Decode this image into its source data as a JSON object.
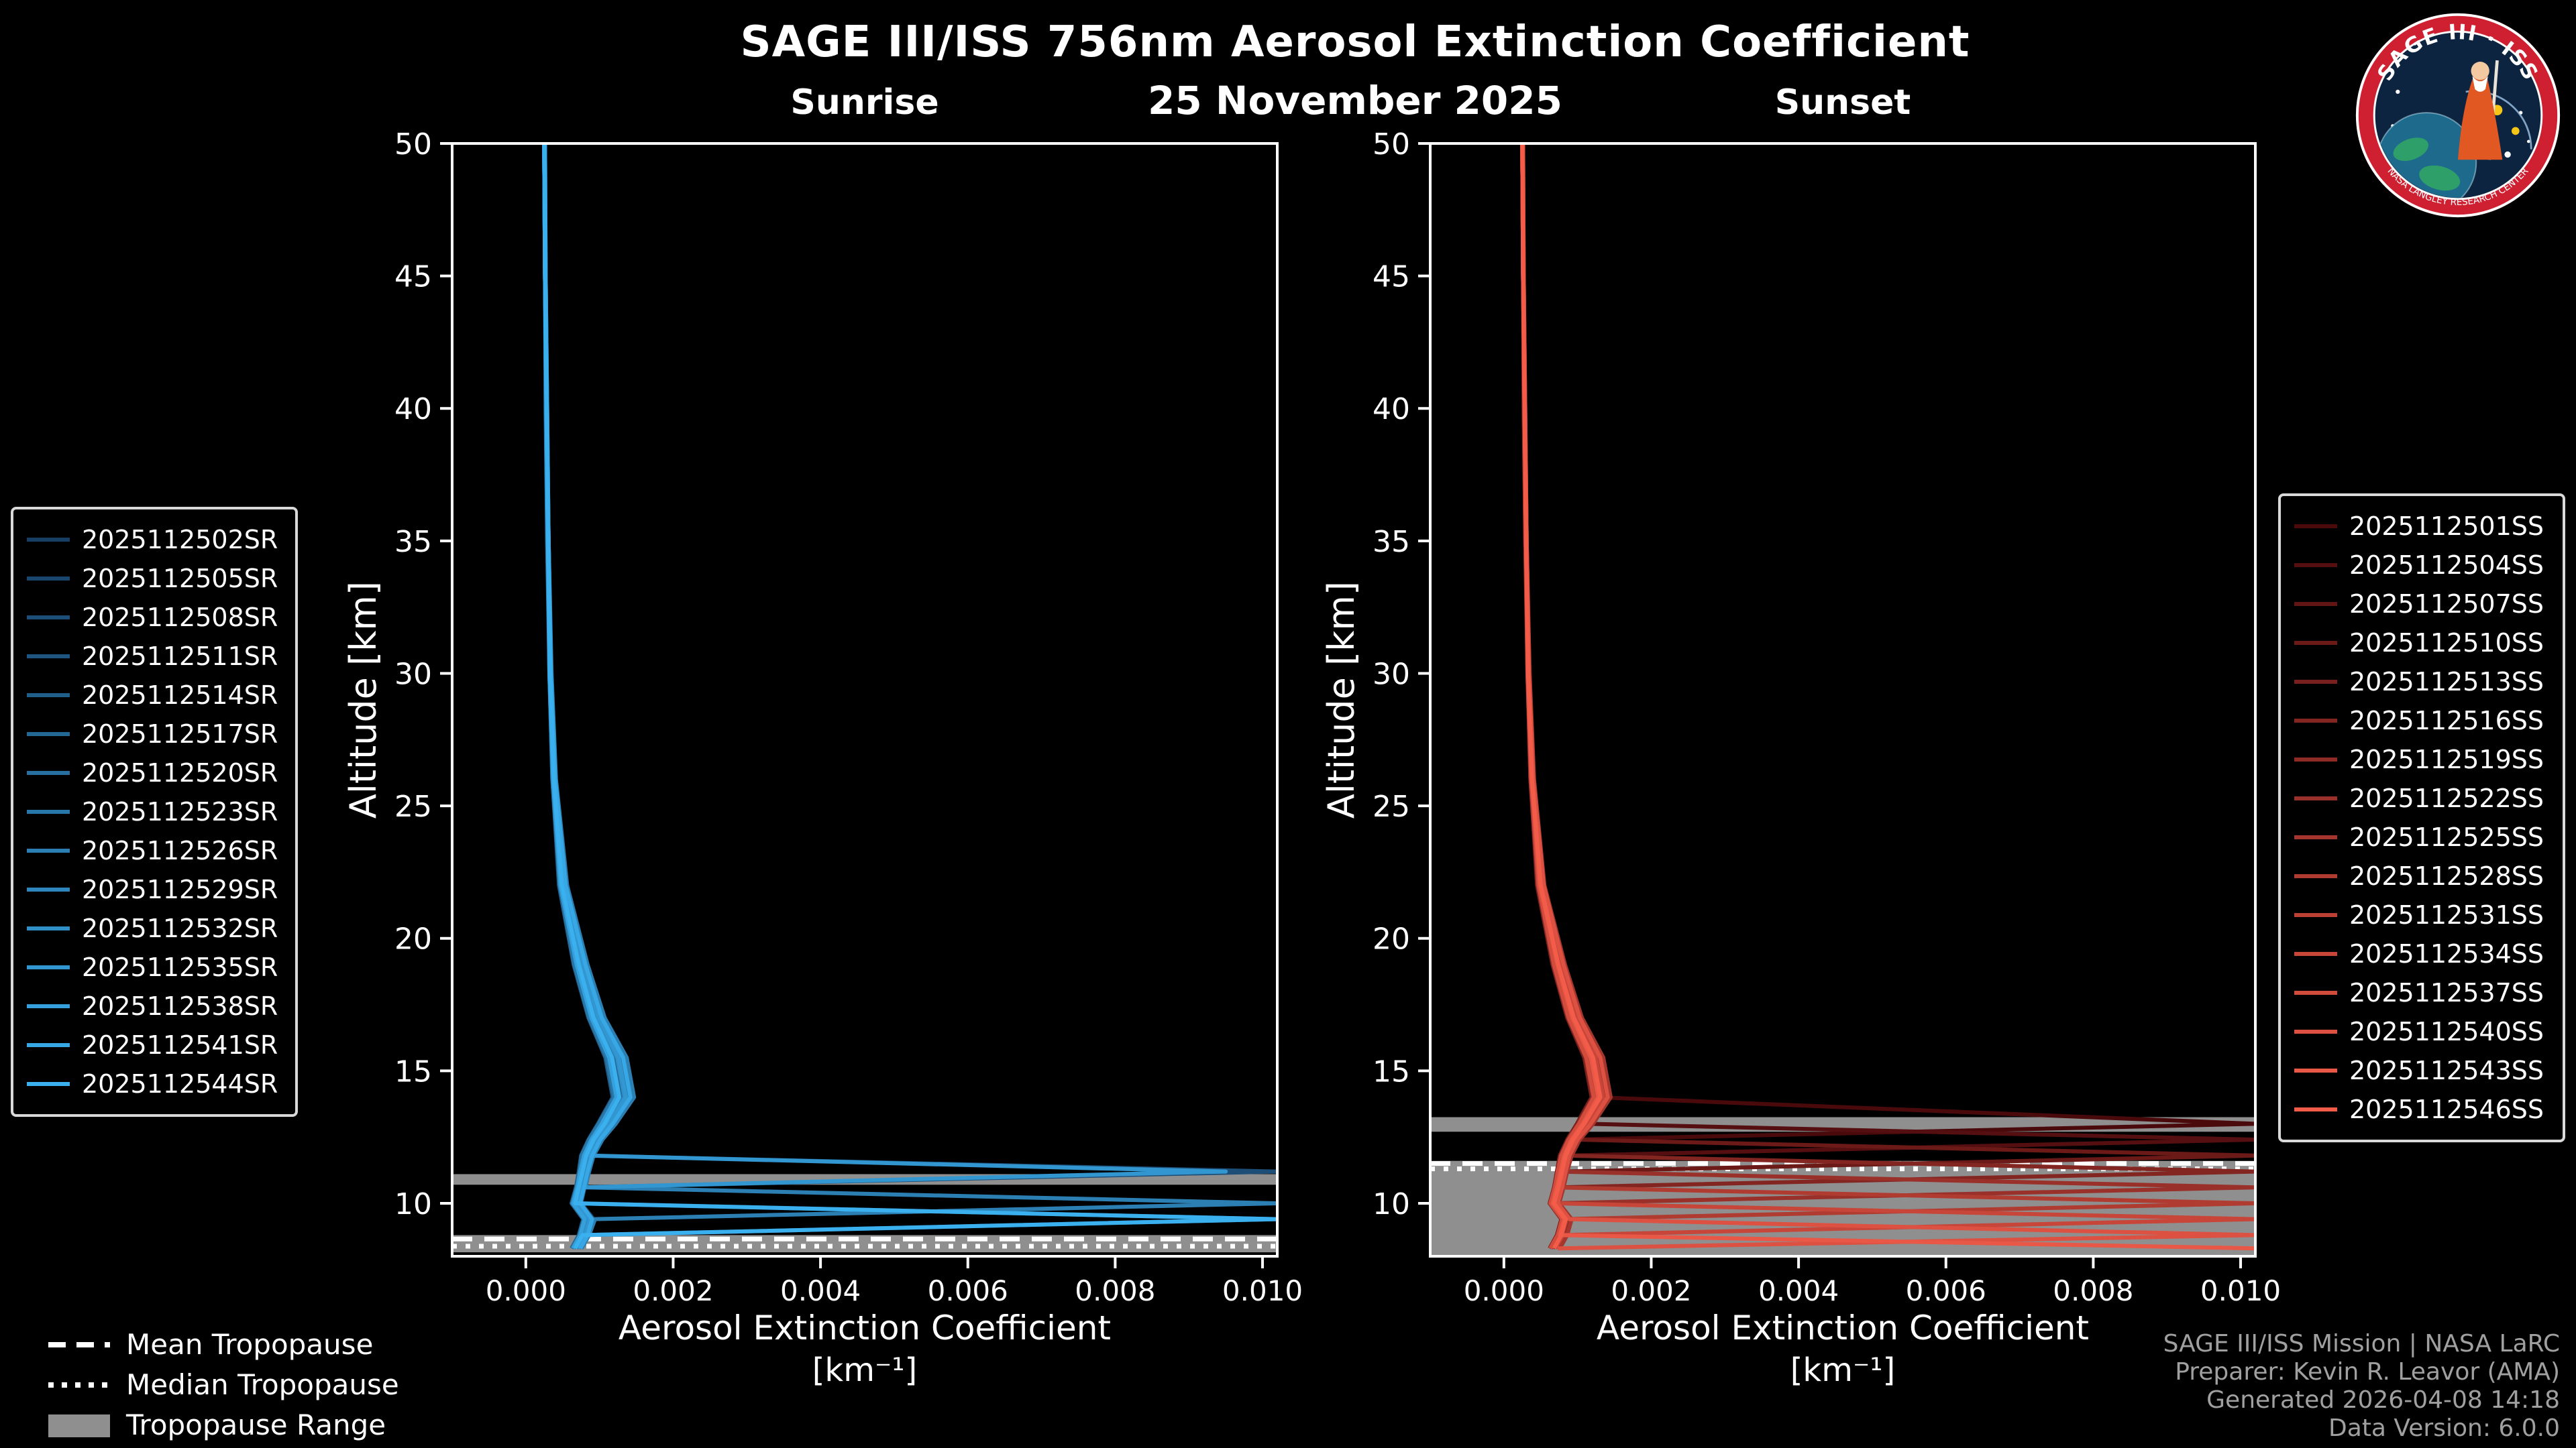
{
  "page": {
    "title": "SAGE III/ISS 756nm Aerosol Extinction Coefficient",
    "date": "25 November 2025"
  },
  "logo": {
    "text": "SAGE III · ISS",
    "subtext": "NASA LANGLEY RESEARCH CENTER"
  },
  "tropopause_legend": {
    "mean": "Mean Tropopause",
    "median": "Median Tropopause",
    "range": "Tropopause Range"
  },
  "credits": {
    "lines": [
      "SAGE III/ISS Mission | NASA LaRC",
      "Preparer: Kevin R. Leavor (AMA)",
      "Generated 2026-04-08 14:18",
      "Data Version: 6.0.0"
    ]
  },
  "chart_data": [
    {
      "type": "line",
      "title": "Sunrise",
      "xlabel": "Aerosol Extinction Coefficient",
      "xlabel_units": "[km⁻¹]",
      "ylabel": "Altitude [km]",
      "xlim": [
        -0.001,
        0.0102
      ],
      "ylim": [
        8,
        50
      ],
      "xticks": [
        0.0,
        0.002,
        0.004,
        0.006,
        0.008,
        0.01
      ],
      "yticks": [
        10,
        15,
        20,
        25,
        30,
        35,
        40,
        45,
        50
      ],
      "grid": false,
      "legend_position": "outside-left",
      "altitudes": [
        50,
        45,
        40,
        35,
        30,
        26,
        22,
        19,
        17,
        15.5,
        14,
        13,
        12.4,
        11.8,
        11.2,
        10.6,
        10,
        9.4,
        8.8,
        8.3
      ],
      "tropopause": {
        "mean": 8.65,
        "median": 8.38,
        "bands": [
          [
            8.15,
            8.8
          ],
          [
            10.7,
            11.1
          ]
        ]
      },
      "series": [
        {
          "name": "2025112502SR",
          "color": "#173e63",
          "values": [
            0.00025,
            0.00026,
            0.00028,
            0.0003,
            0.00033,
            0.00038,
            0.00048,
            0.0007,
            0.0009,
            0.00115,
            0.00125,
            0.00105,
            0.0009,
            0.0008,
            0.00075,
            0.0007,
            0.00065,
            0.0008,
            0.00075,
            0.00065
          ]
        },
        {
          "name": "2025112505SR",
          "color": "#19466d",
          "values": [
            0.00025,
            0.00026,
            0.00028,
            0.00031,
            0.00034,
            0.00039,
            0.00052,
            0.00078,
            0.001,
            0.00128,
            0.00138,
            0.00115,
            0.00098,
            0.00088,
            0.00082,
            0.00078,
            0.00072,
            0.00088,
            0.00082,
            0.00072
          ]
        },
        {
          "name": "2025112508SR",
          "color": "#1c4e77",
          "values": [
            0.00025,
            0.00027,
            0.00028,
            0.0003,
            0.00033,
            0.00037,
            0.00047,
            0.00068,
            0.00088,
            0.00112,
            0.00122,
            0.001,
            0.00088,
            0.00078,
            0.0102,
            0.00072,
            0.00068,
            0.00082,
            0.00078,
            0.00068
          ]
        },
        {
          "name": "2025112511SR",
          "color": "#1e5681",
          "values": [
            0.00026,
            0.00027,
            0.00029,
            0.00031,
            0.00034,
            0.0004,
            0.00055,
            0.00082,
            0.00105,
            0.00135,
            0.00145,
            0.0012,
            0.00102,
            0.0009,
            0.00085,
            0.0008,
            0.00075,
            0.00092,
            0.00085,
            0.00075
          ]
        },
        {
          "name": "2025112514SR",
          "color": "#215f8b",
          "values": [
            0.00025,
            0.00026,
            0.00028,
            0.0003,
            0.00032,
            0.00036,
            0.00045,
            0.00065,
            0.00085,
            0.00108,
            0.00118,
            0.00098,
            0.00085,
            0.00075,
            0.00072,
            0.00068,
            0.00062,
            0.00078,
            0.00072,
            0.00062
          ]
        },
        {
          "name": "2025112517SR",
          "color": "#236795",
          "values": [
            0.00025,
            0.00026,
            0.00028,
            0.0003,
            0.00033,
            0.00038,
            0.0005,
            0.00074,
            0.00094,
            0.00119,
            0.00129,
            0.00109,
            0.00094,
            0.00084,
            0.00079,
            0.00074,
            0.00069,
            0.0102,
            0.00079,
            0.00069
          ]
        },
        {
          "name": "2025112520SR",
          "color": "#266f9f",
          "values": [
            0.00025,
            0.00026,
            0.00028,
            0.00031,
            0.00034,
            0.00039,
            0.00053,
            0.00079,
            0.00101,
            0.0013,
            0.0014,
            0.00117,
            0.00099,
            0.00089,
            0.00083,
            0.00079,
            0.00073,
            0.00089,
            0.00083,
            0.00073
          ]
        },
        {
          "name": "2025112523SR",
          "color": "#2877a9",
          "values": [
            0.00025,
            0.00026,
            0.00027,
            0.00029,
            0.00032,
            0.00036,
            0.00046,
            0.00066,
            0.00086,
            0.0011,
            0.0012,
            0.00099,
            0.00086,
            0.00076,
            0.00073,
            0.00069,
            0.00063,
            0.00079,
            0.00073,
            0.00063
          ]
        },
        {
          "name": "2025112526SR",
          "color": "#2b7fb3",
          "values": [
            0.00026,
            0.00027,
            0.00029,
            0.00031,
            0.00035,
            0.00041,
            0.00056,
            0.00084,
            0.00107,
            0.00137,
            0.00147,
            0.00122,
            0.00104,
            0.00092,
            0.00086,
            0.00081,
            0.0102,
            0.00094,
            0.00086,
            0.00076
          ]
        },
        {
          "name": "2025112529SR",
          "color": "#2d87bd",
          "values": [
            0.00025,
            0.00026,
            0.00028,
            0.0003,
            0.00033,
            0.00037,
            0.00048,
            0.00071,
            0.00091,
            0.00116,
            0.00126,
            0.00106,
            0.00091,
            0.00081,
            0.00076,
            0.00071,
            0.00066,
            0.00081,
            0.00076,
            0.00066
          ]
        },
        {
          "name": "2025112532SR",
          "color": "#308fc7",
          "values": [
            0.00025,
            0.00026,
            0.00028,
            0.0003,
            0.00033,
            0.00038,
            0.00051,
            0.00076,
            0.00097,
            0.00124,
            0.00134,
            0.00112,
            0.00096,
            0.00086,
            0.0008,
            0.00076,
            0.0007,
            0.00086,
            0.0008,
            0.0007
          ]
        },
        {
          "name": "2025112535SR",
          "color": "#3297d1",
          "values": [
            0.00025,
            0.00027,
            0.00028,
            0.00031,
            0.00034,
            0.00039,
            0.00052,
            0.00077,
            0.00099,
            0.00126,
            0.00136,
            0.00113,
            0.00097,
            0.00087,
            0.0095,
            0.00077,
            0.00071,
            0.00087,
            0.00081,
            0.00071
          ]
        },
        {
          "name": "2025112538SR",
          "color": "#35a0db",
          "values": [
            0.00025,
            0.00026,
            0.00028,
            0.0003,
            0.00032,
            0.00037,
            0.00047,
            0.00069,
            0.00089,
            0.00113,
            0.00123,
            0.00103,
            0.00089,
            0.00079,
            0.00074,
            0.0007,
            0.00064,
            0.0008,
            0.00074,
            0.00064
          ]
        },
        {
          "name": "2025112541SR",
          "color": "#37a8e5",
          "values": [
            0.00026,
            0.00027,
            0.00029,
            0.00031,
            0.00034,
            0.0004,
            0.00054,
            0.00081,
            0.00103,
            0.00132,
            0.00142,
            0.00118,
            0.00101,
            0.0009,
            0.00084,
            0.00079,
            0.00074,
            0.0009,
            0.00084,
            0.00074
          ]
        },
        {
          "name": "2025112544SR",
          "color": "#3ab0ef",
          "values": [
            0.00025,
            0.00026,
            0.00028,
            0.0003,
            0.00033,
            0.00038,
            0.00049,
            0.00072,
            0.00092,
            0.00117,
            0.00127,
            0.00107,
            0.00092,
            0.00082,
            0.00077,
            0.00072,
            0.00067,
            0.0102,
            0.00077,
            0.00067
          ]
        }
      ]
    },
    {
      "type": "line",
      "title": "Sunset",
      "xlabel": "Aerosol Extinction Coefficient",
      "xlabel_units": "[km⁻¹]",
      "ylabel": "Altitude [km]",
      "xlim": [
        -0.001,
        0.0102
      ],
      "ylim": [
        8,
        50
      ],
      "xticks": [
        0.0,
        0.002,
        0.004,
        0.006,
        0.008,
        0.01
      ],
      "yticks": [
        10,
        15,
        20,
        25,
        30,
        35,
        40,
        45,
        50
      ],
      "grid": false,
      "legend_position": "outside-right",
      "altitudes": [
        50,
        45,
        40,
        35,
        30,
        26,
        22,
        19,
        17,
        15.5,
        14,
        13,
        12.4,
        11.8,
        11.2,
        10.6,
        10,
        9.4,
        8.8,
        8.3
      ],
      "tropopause": {
        "mean": 11.5,
        "median": 11.3,
        "bands": [
          [
            8.0,
            11.6
          ],
          [
            12.7,
            13.25
          ]
        ]
      },
      "series": [
        {
          "name": "2025112501SS",
          "color": "#4a0a0c",
          "values": [
            0.00025,
            0.00026,
            0.00028,
            0.0003,
            0.00033,
            0.00038,
            0.00049,
            0.00072,
            0.00092,
            0.00117,
            0.00127,
            0.0102,
            0.00092,
            0.00082,
            0.00077,
            0.00072,
            0.00067,
            0.00082,
            0.00077,
            0.00067
          ]
        },
        {
          "name": "2025112504SS",
          "color": "#550f10",
          "values": [
            0.00025,
            0.00026,
            0.00028,
            0.00031,
            0.00034,
            0.00039,
            0.00052,
            0.00078,
            0.001,
            0.00127,
            0.00137,
            0.00114,
            0.0102,
            0.00088,
            0.00082,
            0.00078,
            0.00072,
            0.00088,
            0.00082,
            0.00072
          ]
        },
        {
          "name": "2025112507SS",
          "color": "#611514",
          "values": [
            0.00025,
            0.00026,
            0.00028,
            0.0003,
            0.00033,
            0.00037,
            0.00047,
            0.00069,
            0.00089,
            0.00113,
            0.00123,
            0.00103,
            0.00089,
            0.00079,
            0.00074,
            0.0007,
            0.00064,
            0.0008,
            0.00074,
            0.00064
          ]
        },
        {
          "name": "2025112510SS",
          "color": "#6c1a18",
          "values": [
            0.00026,
            0.00027,
            0.00029,
            0.00031,
            0.00034,
            0.0004,
            0.00054,
            0.0008,
            0.00102,
            0.0013,
            0.0014,
            0.00117,
            0.001,
            0.0102,
            0.00083,
            0.00079,
            0.00073,
            0.00089,
            0.00083,
            0.00073
          ]
        },
        {
          "name": "2025112513SS",
          "color": "#77201d",
          "values": [
            0.00025,
            0.00026,
            0.00028,
            0.0003,
            0.00032,
            0.00036,
            0.00045,
            0.00066,
            0.00086,
            0.00109,
            0.00119,
            0.00099,
            0.00086,
            0.00076,
            0.00072,
            0.00068,
            0.00062,
            0.00078,
            0.00072,
            0.00062
          ]
        },
        {
          "name": "2025112516SS",
          "color": "#832521",
          "values": [
            0.00025,
            0.00026,
            0.00028,
            0.0003,
            0.00033,
            0.00038,
            0.0005,
            0.00074,
            0.00094,
            0.00119,
            0.00129,
            0.00108,
            0.00093,
            0.00083,
            0.0102,
            0.00074,
            0.00068,
            0.00084,
            0.00078,
            0.00068
          ]
        },
        {
          "name": "2025112519SS",
          "color": "#8e2b25",
          "values": [
            0.00025,
            0.00026,
            0.00028,
            0.00031,
            0.00034,
            0.00039,
            0.00053,
            0.00079,
            0.00101,
            0.00129,
            0.00139,
            0.00116,
            0.00099,
            0.00088,
            0.00083,
            0.00078,
            0.00072,
            0.00088,
            0.00082,
            0.00072
          ]
        },
        {
          "name": "2025112522SS",
          "color": "#993029",
          "values": [
            0.00025,
            0.00026,
            0.00027,
            0.00029,
            0.00032,
            0.00036,
            0.00046,
            0.00067,
            0.00087,
            0.00111,
            0.00121,
            0.00101,
            0.00087,
            0.00077,
            0.00073,
            0.0102,
            0.00064,
            0.0008,
            0.00074,
            0.00064
          ]
        },
        {
          "name": "2025112525SS",
          "color": "#a5362d",
          "values": [
            0.00026,
            0.00027,
            0.00029,
            0.00031,
            0.00035,
            0.00041,
            0.00055,
            0.00083,
            0.00106,
            0.00135,
            0.00145,
            0.00121,
            0.00103,
            0.00092,
            0.00086,
            0.00081,
            0.00075,
            0.00092,
            0.00086,
            0.00076
          ]
        },
        {
          "name": "2025112528SS",
          "color": "#b03b31",
          "values": [
            0.00025,
            0.00026,
            0.00028,
            0.0003,
            0.00033,
            0.00037,
            0.00048,
            0.0007,
            0.0009,
            0.00115,
            0.00125,
            0.00104,
            0.0009,
            0.0008,
            0.00075,
            0.0007,
            0.0102,
            0.00081,
            0.00075,
            0.00065
          ]
        },
        {
          "name": "2025112531SS",
          "color": "#bb4135",
          "values": [
            0.00025,
            0.00026,
            0.00028,
            0.0003,
            0.00033,
            0.00038,
            0.00051,
            0.00075,
            0.00096,
            0.00123,
            0.00133,
            0.00111,
            0.00095,
            0.00085,
            0.0008,
            0.00075,
            0.00069,
            0.00085,
            0.00079,
            0.00069
          ]
        },
        {
          "name": "2025112534SS",
          "color": "#c74639",
          "values": [
            0.00025,
            0.00027,
            0.00028,
            0.00031,
            0.00034,
            0.00039,
            0.00052,
            0.00077,
            0.00098,
            0.00125,
            0.00135,
            0.00113,
            0.00096,
            0.00086,
            0.00081,
            0.00076,
            0.0007,
            0.0102,
            0.0008,
            0.0007
          ]
        },
        {
          "name": "2025112537SS",
          "color": "#d24c3e",
          "values": [
            0.00025,
            0.00026,
            0.00028,
            0.0003,
            0.00032,
            0.00037,
            0.00047,
            0.00068,
            0.00088,
            0.00112,
            0.00122,
            0.00102,
            0.00088,
            0.00078,
            0.00073,
            0.00069,
            0.00063,
            0.00079,
            0.00073,
            0.00063
          ]
        },
        {
          "name": "2025112540SS",
          "color": "#dd5142",
          "values": [
            0.00026,
            0.00027,
            0.00029,
            0.00031,
            0.00034,
            0.0004,
            0.00054,
            0.00081,
            0.00103,
            0.00131,
            0.00141,
            0.00118,
            0.001,
            0.00089,
            0.00084,
            0.00079,
            0.00073,
            0.00089,
            0.0102,
            0.00073
          ]
        },
        {
          "name": "2025112543SS",
          "color": "#e95746",
          "values": [
            0.00025,
            0.00026,
            0.00028,
            0.0003,
            0.00033,
            0.00038,
            0.00049,
            0.00073,
            0.00093,
            0.00118,
            0.00128,
            0.00107,
            0.00092,
            0.00082,
            0.00077,
            0.00072,
            0.00066,
            0.00082,
            0.00076,
            0.0102
          ]
        },
        {
          "name": "2025112546SS",
          "color": "#f45c4a",
          "values": [
            0.00025,
            0.00026,
            0.00028,
            0.0003,
            0.00033,
            0.00038,
            0.0005,
            0.00074,
            0.00095,
            0.00121,
            0.00131,
            0.00109,
            0.00094,
            0.00084,
            0.00079,
            0.00074,
            0.00068,
            0.00084,
            0.00078,
            0.00068
          ]
        }
      ]
    }
  ]
}
